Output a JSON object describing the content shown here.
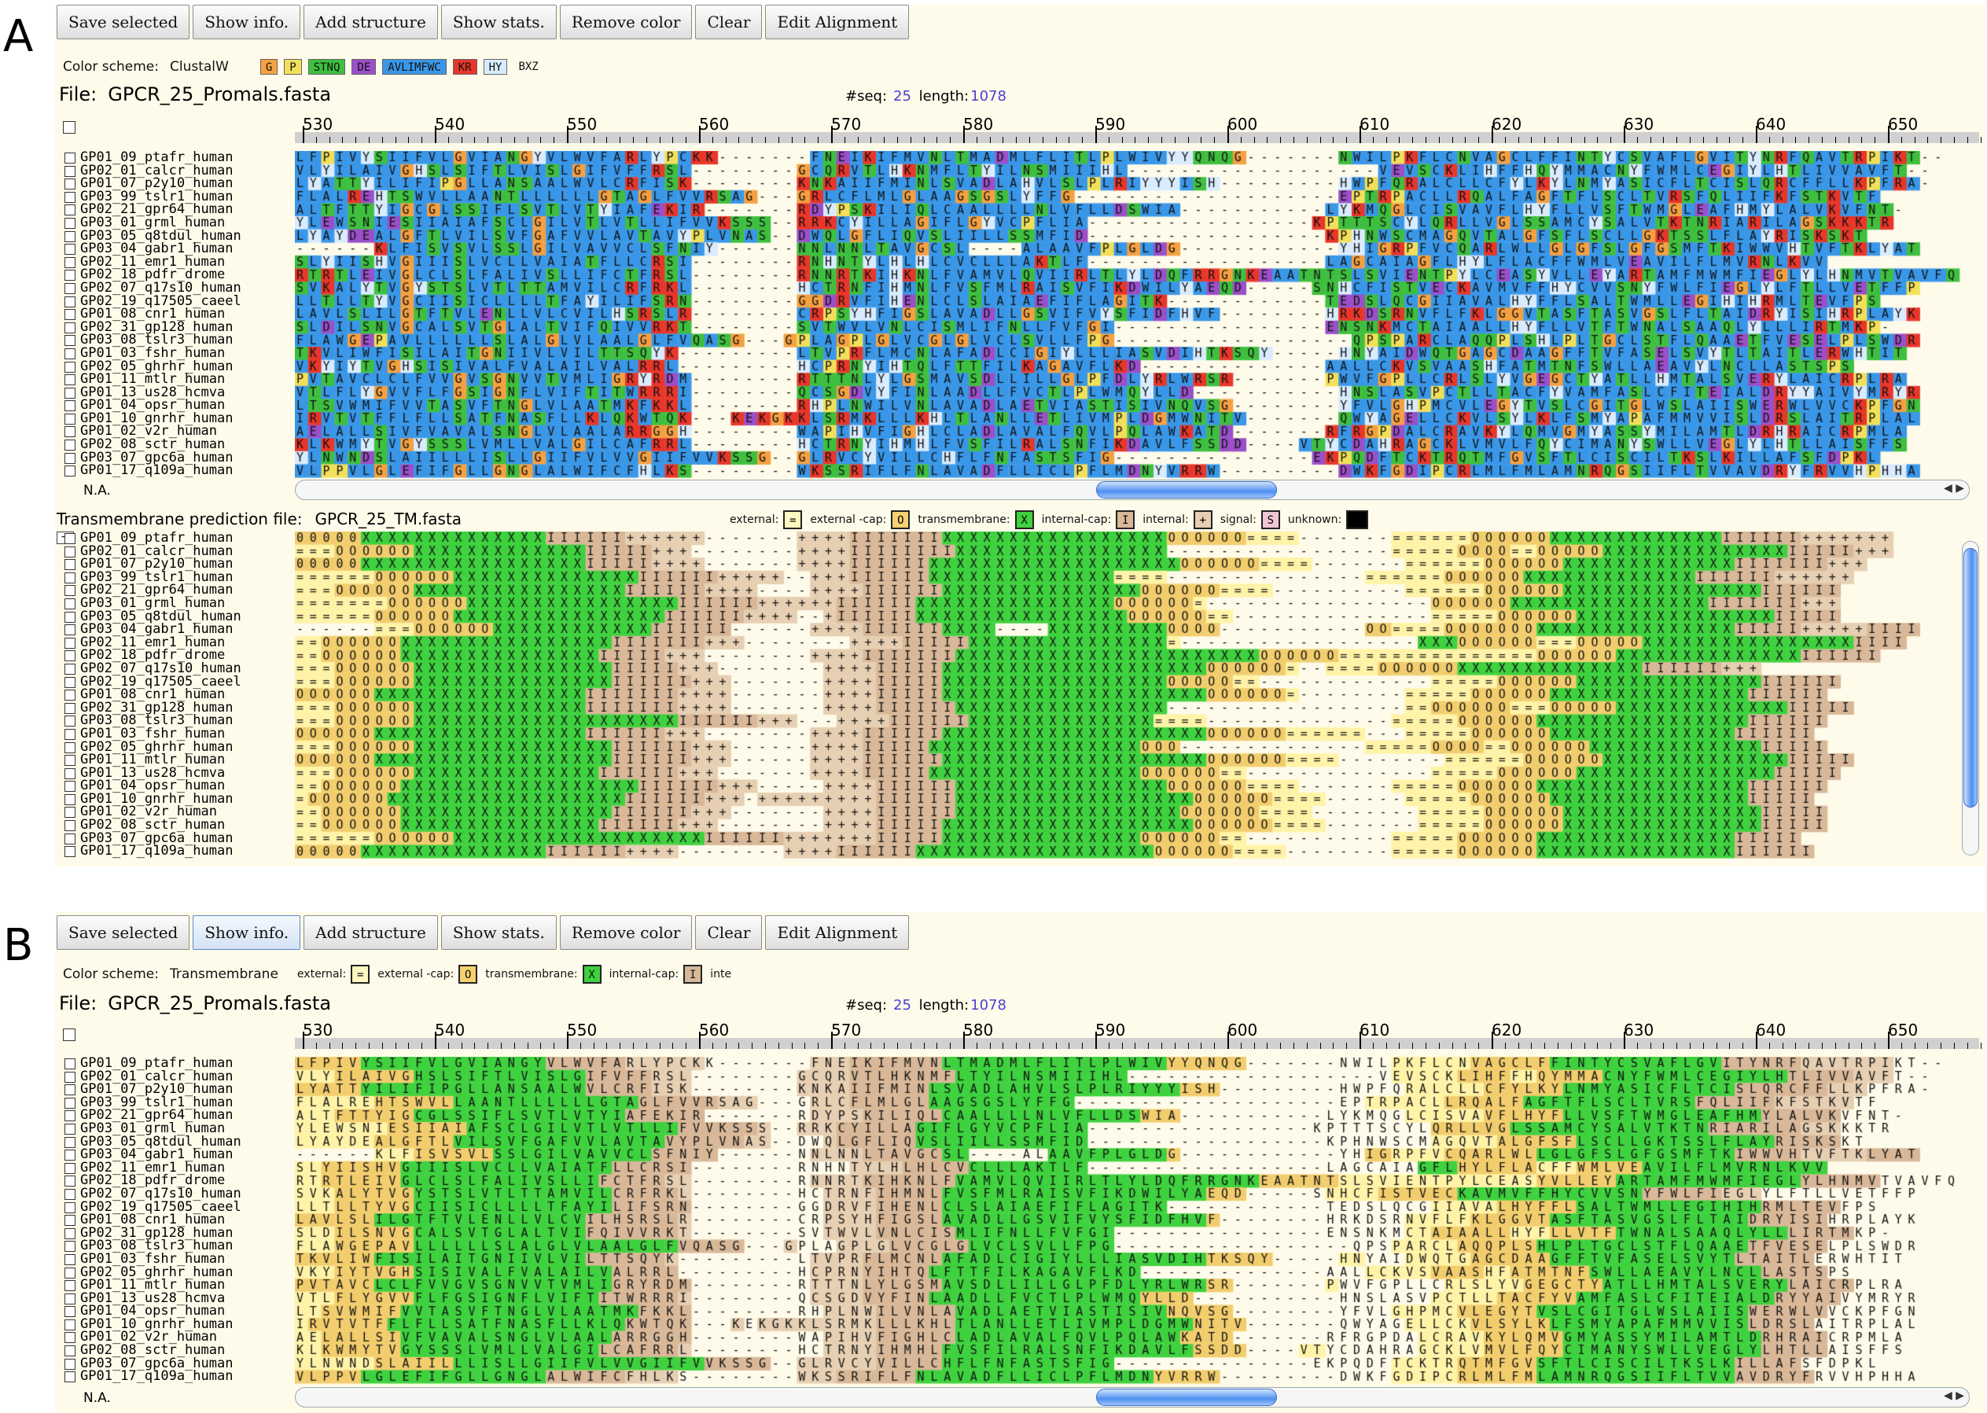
{
  "panelA_label": "A",
  "panelB_label": "B",
  "toolbar": [
    "Save selected",
    "Show info.",
    "Add structure",
    "Show stats.",
    "Remove color",
    "Clear",
    "Edit Alignment"
  ],
  "color_scheme_label": "Color scheme:",
  "panelA": {
    "scheme": "ClustalW",
    "groups": [
      {
        "text": "G",
        "bg": "#f5a142"
      },
      {
        "text": "P",
        "bg": "#f3e05a"
      },
      {
        "text": "STNQ",
        "bg": "#3fbf3f"
      },
      {
        "text": "DE",
        "bg": "#9b4fc9"
      },
      {
        "text": "AVLIMFWC",
        "bg": "#3a97e8"
      },
      {
        "text": "KR",
        "bg": "#e8362b"
      },
      {
        "text": "HY",
        "bg": "#d9ecff"
      },
      {
        "text": "BXZ",
        "bg": "#fffbea"
      }
    ]
  },
  "panelB": {
    "scheme": "Transmembrane",
    "legend": [
      {
        "label": "external:",
        "sym": "=",
        "bg": "#fff8c0"
      },
      {
        "label": "external -cap:",
        "sym": "O",
        "bg": "#f5d070"
      },
      {
        "label": "transmembrane:",
        "sym": "X",
        "bg": "#3fd13f"
      },
      {
        "label": "internal-cap:",
        "sym": "I",
        "bg": "#d8b898"
      },
      {
        "label": "inte",
        "sym": "",
        "bg": ""
      }
    ]
  },
  "file": {
    "label": "File:",
    "name": "GPCR_25_Promals.fasta",
    "seq_label": "#seq:",
    "seq": "25",
    "length_label": "length:",
    "length": "1078"
  },
  "ruler": [
    "530",
    "540",
    "550",
    "560",
    "570",
    "580",
    "590",
    "600",
    "610",
    "620",
    "630",
    "640",
    "650"
  ],
  "names": [
    "GP01_09_ptafr_human",
    "GP02_01_calcr_human",
    "GP01_07_p2y10_human",
    "GP03_99_tslr1_human",
    "GP02_21_gpr64_human",
    "GP03_01_grml_human",
    "GP03_05_q8tdul_human",
    "GP03_04_gabr1_human",
    "GP02_11_emr1_human",
    "GP02_18_pdfr_drome",
    "GP02_07_q17s10_human",
    "GP02_19_q17505_caeel",
    "GP01_08_cnr1_human",
    "GP02_31_gp128_human",
    "GP03_08_tslr3_human",
    "GP01_03_fshr_human",
    "GP02_05_ghrhr_human",
    "GP01_11_mtlr_human",
    "GP01_13_us28_hcmva",
    "GP01_04_opsr_human",
    "GP01_10_gnrhr_human",
    "GP01_02_v2r_human",
    "GP02_08_sctr_human",
    "GP03_07_gpc6a_human",
    "GP01_17_q109a_human"
  ],
  "seqs": [
    "LFPIVYSIIFVLGVIANGYVLWVFARLYPCKK-------FNEIKIFMVNLTMADMLFLITLPLWIVYYQNQG-------NWILPKFLCNVAGCLFFINTYCSVAFLGVITYNRFQAVTRPIKT--",
    "VLYILAIVGHSLSIFTLVISLGIFVFFRSL--------GCQRVTLHKNMFLTYILNSMIIIHL-------------------VEVSCKLIHFFHQYMMACNYFWMLCEGIYLHTLIVVAVFT--",
    "LYATTYILIFIPGLLANSAALWVLCRFISK--------KNKAIIFMINLSVADLAHVLSLPLRIYYYISH---------HWPFQRALCLLCFYLKYLNMYASICFLTCISLQRCFFLLKPFRA-",
    "FLALREHTSWVLLAANTLLLLLLGTAGLFVVRSAG---GRLCFLMLGLAAGSGSLYFFG--------------------EPTRPACLLRQALFAGFTFLSCLTVRSFQLIIFKFSTKVTF",
    "ALTFTTYIGCGLSSIFLSVTLVTYIAFEKIR-------RDYPSKILIQLCAALLLLNLVFLLDSWIA-----------LYKMQGLCISVAVFLHYFLLVSFTWMGLEAFHMYLALVKVFNT-",
    "YLEWSNIESIIAIAFSCLGILVTLVTLLIFVVKSSS--RRKCYILLAGIFLGYVCPFLIA-----------------KPTTTSCYLQRLLVGLSSAMCYSALVTKTNRIARILAGSKKKTR",
    "LYAYDEALGFTLVILSVFGAFVVLAVTAVYPLVNAS--DWQLGFLIQVSLIILLSSMFID------------------KPHNWSCMAGQVTALGFSFLSCLLGKTSSLFLAYRISKSKT",
    "------KLFISVSVLSSLGILVAVVCLSFNIY------NNLNNLTAVGCSL----ALAAVFPLGLDG------------YHIGRPFVCQARLWLLGLGFSLGFGSMFTKIWWVHTVFTKLYAT",
    "SLYIISHVGIIISLVCLLVAIATFLLCRSI--------RNHNTYLHLHLCVCLLLAKTLF------------------LAGCAIAGFLHYLFLACFFWMLVEAVILFLMVRNLKVV",
    "RTRTLEIVGLCLSLFALIVSLLIFCTFRSL--------RNNRTKIHKNLFVAMVLQVIIRLTLYLDQFRRGNKEAATNTSLSVIENTPYLCEASYVLLEYARTAMFMWMFIEGLYLHNMVTVAVFQ",
    "SVKALYTVGYSTSLVTLTTAMVILCRFRKL--------HCTRNFIHMNLFVSFMLRAISVFIKDWILYAEQD-----SNHCFISTVECKAVMVFFHYCVVSNYFWLFIEGLYLFTLLVETFFP",
    "LLTLLTYVGCIISICLLLLTFAYILIFSRN--------GGDRVFIHENLCLSLAIAEFIFLAGITK------------TEDSLQCGIIAVALHYFFLSALTWMLLEGIHIHRMLTEVFPS",
    "LAVLSLILGTFTVLENLLVLCVILHSRSLR--------CRPSYHFIGSLAVADLLGSVIFVYSFIDFHVF--------HRKDSRNVFLFKLGGVTASFTASVGSLFLTAIDRYISIHRPLAYK",
    "SLDILSNVGCALSVTGLALTVIFQIVVRKT--------SVTWVLVNLCISMLIFNLLFVFGI----------------ENSNKMCTAIAALLHYFLLVTFTWNALSAAQLYLLLIRTMKP-",
    "FLAWGEPAVLLLLLLSLALGLVLAALGLFVQASG---GPLAGPLGLVCGLGLVCLSVLLFPG------------------QPSPARCLAQQPLSHLPLTGCLSTFLQAAETFVESELPLSWDR",
    "TKVLIWFISILAITGNIIVLVILTTSQYK---------LTVPRFLMCNLAFADLCIGIYLLLIASVDIHTKSQY-----HNYAIDWQTGAGCDAAGFFTVFASELSVYTLTAITLERWHTIT",
    "VKYIYTVGHSISIVALFVALAILVALRRL---------HCPRNYIHTQLFTTFILKAGAVFLKD--------------AALLCKVSVAASHFATMTNFSWLLAEAVYLNCLLASTSPS",
    "PVTAVCLCLFVVGVSGNVVTVMLIGRYRDM--------RTTTNLYLGSMAVSDLLILLGLPFDLYRLWRSR-------PWVFGPLLCRLSLYVGEGCTYATLLHMTALSVERYLAICRPLRA",
    "VTLFLYGVVFLFGSIGNFLVIFTITWRRRI--------QCSGDVYFINLAADLLFVCTLPLWMQYLLD-----------HNSLASVPCTLLTACFYVAMFASLCFITEIALDRYYAIVYMRYR",
    "LTSVWMIFVVTASVFTNGLVLAATMKFKKL--------RHPLNWILVNLAVADLAETVIASTISIVNQVSG--------YFVLGHPMCVLEGYTVSLCGITGLWSLAIISWERWLVVCKPFGN",
    "IRVTVTFFLFLLSATFNASFLLKLQKWTQK---KEKGKKLSRMKLLLKHLTLANLLETLIVMPLDGMWNITV-------QWYAGELLCKVLSYLKLFSMYAPAFMMVVISLDRSLAITRPLAL",
    "AELALLSIVFVAVALSNGLVLAALARRGGH--------WAPIHVFIGHLCLADLAVALFQVLPQLAWKATD-------RFRGPDALCRAVKYLQMVGMYASSYMILAMTLDRHRAICRPMLA",
    "KLKWMYTVGYSSSLVMLLVALGILCAFRRL--------HCTRNYIHMHLFVSFILRALSNFIKDAVLFSSDD----VTYCDAHRAGCKLVMVLFQYCIMANYSWLLVEGLYLHTLLAISFFS",
    "YLNWNDSLAIILLLISLLGIIFVLVVGIIFVVKSSG--GLRVCYVILLCHFLFNFASTSFIG---------------EKPQDFTCKTRQTMFGVSFTLCISCILTKSLKILLAFSFDPKL",
    "VLPPVLGLEFIFGLLGNGLALWIFCFHLKS--------WKSSRIFLFNLAVADFLLICLPFLMDNYVRRW---------DWKFGDIPCRLMLFMLAMNRQGSIIFLTVVAVDRYFRVVHPHHA"
  ],
  "na": "N.A.",
  "tm": {
    "title": "Transmembrane prediction file:",
    "file": "GPCR_25_TM.fasta",
    "legend": [
      {
        "label": "external:",
        "sym": "=",
        "bg": "#fff8c0"
      },
      {
        "label": "external -cap:",
        "sym": "O",
        "bg": "#f5d070"
      },
      {
        "label": "transmembrane:",
        "sym": "X",
        "bg": "#3fd13f"
      },
      {
        "label": "internal-cap:",
        "sym": "I",
        "bg": "#d8b898"
      },
      {
        "label": "internal:",
        "sym": "+",
        "bg": "#e6cfb2"
      },
      {
        "label": "signal:",
        "sym": "S",
        "bg": "#f0c6d6"
      },
      {
        "label": "unknown:",
        "sym": "",
        "bg": "#000000"
      }
    ],
    "rows": [
      "00000XXXXXXXXXXXXXXIIIIII++++++-------++++IIIIIIIXXXXXXXXXXXXXXXXXOOOOOO====-------======OOOOOOXXXXXXXXXXXXXIIIIII+++++++",
      "===OOOOOOXXXXXXXXXXXXXIIIII+++--------++++IIIIIIIIXXXXXXXXXXXXXXXX-----------------=====OOOO==OOOOOXXXXXXXXXXXXXXIIIII+++",
      "00000XXXXXXXXXXXXXXXXXIIIII++++-------++++IIIIIIXXXXXXXXXXXXXXXXXXXOOOOOO====-------======OOOOOOXXXXXXXXXXXXXIIIIIII+++",
      "======OOOOOOXXXXXXXXXXXXXXIIIIII+++++--+++IIIIIIXXXXXXXXXXXXXX====---------------======OOOOOOXXXXXXXXXXXXXIIIIII++++++",
      "===OOOOOOXXXXXXXXXXXXXXXXIIIIII++++----++++IIIIIIXXXXXXXXXXXXXXXOOOOOO====----------======OOOOOOXXXXXXXXXXXXXXXIIIIII",
      "=======OOOOOOXXXXXXXXXXXXXXXXIIIIII++++++IIIIIIXXXXXXXXXXXXXXXOOOOOO=-----------------OOOOOOXXXXXXXXXXXXXXXIIIIIII+++",
      "======OOOOOOXXXXXXXXXXXXXXXXIIIIII++++--+IIIIIIXXXXXXXXXXXXXXXXOOOOOO==---------------=====OOOOOOXXXXXXXXXXXXXXXIIIII",
      "------===OOOOOOXXXXXXXXXXXXIIIIII------++++IIIIIIXXXX----XXXXXXXXXOOOO-----------OO====OOOOOOOXXXXXXXXXXXXXXXIIIII+++++IIII",
      "==OOOOOOXXXXXXXXXXXXXXXXIIIIIII+++--------++++IIIIIXXXXXXXXXXXXXXX=------------------XXXOOOOOO===OOOOOXXXXXXXXXXXXXXXXIIII",
      "==OOOOOOXXXXXXXXXXXXXXXIIIII+++--------++++IIIIIIIXXXXXXXXXXXXXXXXXXXXXXXOOOOOO===============OOOOOOXXXXXXXXXXXXXXIIIIII",
      "===OOOOOOXXXXXXXXXXXXXXXIIIII+++--------++++IIIIIXXXXXXXXXXXXXXXXXXXXOOOOOO=--====OOOOOOXXXXXXXXXXXXXXIIIIII+++",
      "===OOOOOOXXXXXXXXXXXXXXXIIIIII+++-------++++IIIIIXXXXXXXXXXXXXXXXXOOOOO==-------------=====OOOOOOXXXXXXXXXXXXXXIIIIII",
      "OOOOOOXXXXXXXXXXXXXXXXIIIIIII++++-------++++IIIIIXXXXXXXXXXXXXXXXXXXXOOOOOO=--------=====OOOOOOXXXXXXXXXXXXXXXIIIIII",
      "===OOOOOOXXXXXXXXXXXXXIIIIIII++++-------++++IIIIIIXXXXXXXXXXXXXXXX------------------==OOOOOO===OOOOOXXXXXXXXXXXXXIIIII",
      "===OOOOOOXXXXXXXXXXXXXXXXXXXXIIIIII+++---++++IIIIIIXXXXXXXXXXXXXX====--------------=====OOOOOOXXXXXXXXXXXXXXXXIIIIII",
      "OOOOOOXXXXXXXXXXXXXXXXIIIIII+++--------++++IIIIIIXXXXXXXXXXXXXXXXXXXXOOOOOO======---=====OOOOOOXXXXXXXXXXXXXXIIIIII",
      "===OOOOOOXXXXXXXXXXXXXXXIIIIII+++------++++IIIIIXXXXXXXXXXXXXXXXOOO--------------=====OOOO==OOOOOOXXXXXXXXXXXXXIIIII",
      "OOOOOOXXXXXXXXXXXXXXXXXXIIIIII+++------++++IIIIIIXXXXXXXXXXXXXXXXXXXXOOOOOO====--------======OOOOOOXXXXXXXXXXXXXXIIIII",
      "===OOOOOOXXXXXXXXXXXXXXIIIIII+++-------++++IIIIIXXXXXXXXXXXXXXXXOOOOOO==--------------=====OOOOOOXXXXXXXXXXXXXXXIIIII",
      "==OOOOOOXXXXXXXXXXXXXXXXXXIIIIII+++-----++++IIIIIIXXXXXXXXXXXXXXXXOOOOOO====-------=====OOOOOOXXXXXXXXXXXXXXXXIIIIII",
      "=OOOOOOXXXXXXXXXXXXXXXXXXIIIIII+++-+++++++++IIIIIIXXXXXXXXXXXXXXXXXXOOOOOO====------=====OOOOOOXXXXXXXXXXXXXXXIIIII",
      "==OOOOOOXXXXXXXXXXXXXXXXIIIIII+++-------++++IIIIIIXXXXXXXXXXXXXXXXXOOOOOO====--------=====OOOOOOXXXXXXXXXXXXXXXIIIII",
      "==OOOOOOXXXXXXXXXXXXXXXIIIIII+++--------++++IIIIIXXXXXXXXXXXXXXXXXXXOOOOOO====-------=====OOOOOOXXXXXXXXXXXXXXXIIIII",
      "======OOOOOOXXXXXXXXXXXXXXXXXXXIIIIII+++++++IIIIIXXXXXXXXXXXXXXXOOOOOO==-----------=====OOOOOOXXXXXXXXXXXXXXXIIIII",
      "00000XXXXXXXXXXXXXXIIIIII++++--------++++IIIIIIXXXXXXXXXXXXXXXXXXOOOOOO====--------=====OOOOOOXXXXXXXXXXXXXXXIIIIII"
    ]
  }
}
